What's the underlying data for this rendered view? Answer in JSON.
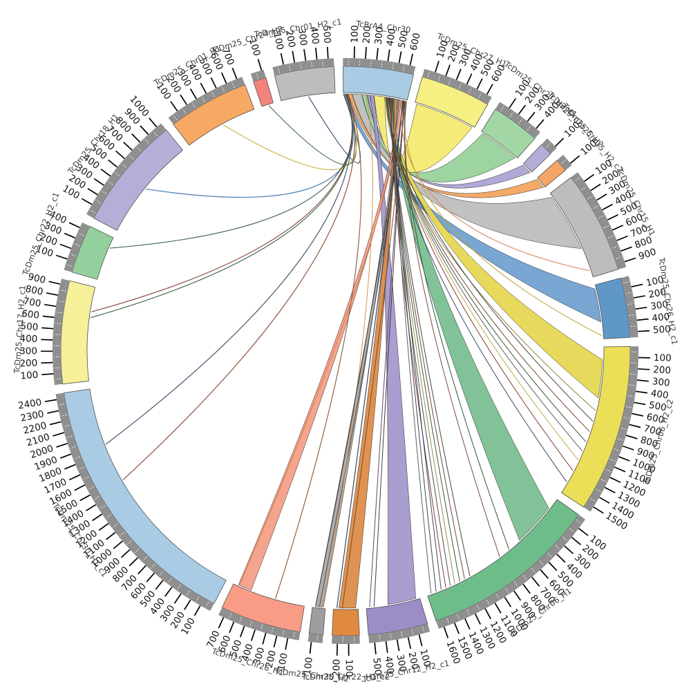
{
  "chart_data": {
    "type": "chord",
    "title": "",
    "tick_interval": 100,
    "band_color": "#8f8f8f",
    "tick_color": "#000000",
    "segments": [
      {
        "name": "TcBrA4_Chr30",
        "length": 650,
        "color": "#a9cbe4",
        "ticks": [
          100,
          200,
          300,
          400,
          500,
          600
        ]
      },
      {
        "name": "TcDm25_Chr27_H1",
        "length": 650,
        "color": "#f6ef82",
        "ticks": [
          100,
          200,
          300,
          400,
          500,
          600
        ]
      },
      {
        "name": "TcDm25_Chr27_H2_c1",
        "length": 450,
        "color": "#a2d6a4",
        "ticks": [
          100,
          200,
          300,
          400
        ]
      },
      {
        "name": "TcDm25_Chr25_H2",
        "length": 120,
        "color": "#b5add7",
        "ticks": [
          100
        ]
      },
      {
        "name": "TcDm25_Chr15_H2_c2",
        "length": 120,
        "color": "#f4a566",
        "ticks": [
          100
        ]
      },
      {
        "name": "TcDm25_Chr15_H1",
        "length": 950,
        "color": "#bdbdbd",
        "ticks": [
          100,
          200,
          300,
          400,
          500,
          600,
          700,
          800,
          900
        ]
      },
      {
        "name": "TcDm25_Chr26_H2_c1",
        "length": 550,
        "color": "#5f97c9",
        "ticks": [
          100,
          200,
          300,
          400,
          500
        ]
      },
      {
        "name": "TcDm25_Chr06_H2_c2",
        "length": 1550,
        "color": "#ecdf58",
        "ticks": [
          100,
          200,
          300,
          400,
          500,
          600,
          700,
          800,
          900,
          1000,
          1100,
          1200,
          1300,
          1400,
          1500
        ]
      },
      {
        "name": "TcDm25_Chr06_H1",
        "length": 1650,
        "color": "#6fbc8b",
        "ticks": [
          100,
          200,
          300,
          400,
          500,
          600,
          700,
          800,
          900,
          1000,
          1100,
          1200,
          1300,
          1400,
          1500,
          1600
        ]
      },
      {
        "name": "TcDm25_Chr12_H2_c1",
        "length": 550,
        "color": "#9c8dc7",
        "ticks": [
          100,
          200,
          300,
          400,
          500
        ]
      },
      {
        "name": "TcDm25_Chr22_H1_c2",
        "length": 250,
        "color": "#e08a3f",
        "ticks": [
          100,
          200
        ]
      },
      {
        "name": "TcDm25_Chr30_H2",
        "length": 130,
        "color": "#9e9e9e",
        "ticks": [
          100
        ]
      },
      {
        "name": "TcDm25_Chr26_H1",
        "length": 750,
        "color": "#f99c86",
        "ticks": [
          100,
          200,
          300,
          400,
          500,
          600,
          700
        ]
      },
      {
        "name": "TcDm25_Chr30_H1_c1",
        "length": 2450,
        "color": "#a9cbe4",
        "ticks": [
          100,
          200,
          300,
          400,
          500,
          600,
          700,
          800,
          900,
          1000,
          1100,
          1200,
          1300,
          1400,
          1500,
          1600,
          1700,
          1800,
          1900,
          2000,
          2100,
          2200,
          2300,
          2400
        ]
      },
      {
        "name": "TcDm25_Chr17_H2_c1",
        "length": 950,
        "color": "#f7f09b",
        "ticks": [
          100,
          200,
          300,
          400,
          500,
          600,
          700,
          800,
          900
        ]
      },
      {
        "name": "TcDm25_Chr22_H2_c1",
        "length": 450,
        "color": "#94d09e",
        "ticks": [
          100,
          200,
          300,
          400
        ]
      },
      {
        "name": "TcDm25_Chr18_H1",
        "length": 1050,
        "color": "#b7aed7",
        "ticks": [
          100,
          200,
          300,
          400,
          500,
          600,
          700,
          800,
          900,
          1000
        ]
      },
      {
        "name": "TcDm25_Chr01_H1",
        "length": 750,
        "color": "#f5a963",
        "ticks": [
          100,
          200,
          300,
          400,
          500,
          600,
          700
        ]
      },
      {
        "name": "TcDm25_Chr24_H2",
        "length": 120,
        "color": "#f4837d",
        "ticks": [
          100
        ]
      },
      {
        "name": "TcDm25_Chr01_H2_c1",
        "length": 550,
        "color": "#bdbdbd",
        "ticks": [
          100,
          200,
          300,
          400,
          500
        ]
      }
    ],
    "links": [
      {
        "kind": "ribbon",
        "s": [
          0,
          45
        ],
        "t_seg": 6,
        "t": [
          40,
          380
        ],
        "color": "#6f9fd0"
      },
      {
        "kind": "ribbon",
        "s": [
          50,
          85
        ],
        "t_seg": 4,
        "t": [
          8,
          112
        ],
        "color": "#f2a25c"
      },
      {
        "kind": "ribbon",
        "s": [
          90,
          185
        ],
        "t_seg": 5,
        "t": [
          40,
          640
        ],
        "color": "#bcbcbc"
      },
      {
        "kind": "ribbon",
        "s": [
          190,
          240
        ],
        "t_seg": 2,
        "t": [
          20,
          430
        ],
        "color": "#97d19b"
      },
      {
        "kind": "ribbon",
        "s": [
          245,
          268
        ],
        "t_seg": 3,
        "t": [
          8,
          112
        ],
        "color": "#aaa2d2"
      },
      {
        "kind": "ribbon",
        "s": [
          272,
          308
        ],
        "t_seg": 9,
        "t": [
          40,
          330
        ],
        "color": "#a496cc"
      },
      {
        "kind": "ribbon",
        "s": [
          312,
          420
        ],
        "t_seg": 1,
        "t": [
          20,
          630
        ],
        "color": "#f3ea6e"
      },
      {
        "kind": "ribbon",
        "s": [
          425,
          462
        ],
        "t_seg": 7,
        "t": [
          130,
          520
        ],
        "color": "#e5d64f"
      },
      {
        "kind": "ribbon",
        "s": [
          466,
          518
        ],
        "t_seg": 8,
        "t": [
          120,
          560
        ],
        "color": "#79bd90"
      },
      {
        "kind": "ribbon",
        "s": [
          522,
          548
        ],
        "t_seg": 10,
        "t": [
          25,
          195
        ],
        "color": "#dd8a44"
      },
      {
        "kind": "ribbon",
        "s": [
          552,
          566
        ],
        "t_seg": 11,
        "t": [
          20,
          100
        ],
        "color": "#a8a8a8"
      },
      {
        "kind": "ribbon",
        "s": [
          570,
          588
        ],
        "t_seg": 12,
        "t": [
          560,
          700
        ],
        "color": "#f49d85"
      },
      {
        "kind": "line",
        "s": 5,
        "t_seg": 19,
        "t": 280,
        "color": "#2f4c6e",
        "w": 1.2
      },
      {
        "kind": "line",
        "s": 10,
        "t_seg": 18,
        "t": 70,
        "color": "#3d6b44",
        "w": 1.2
      },
      {
        "kind": "line",
        "s": 15,
        "t_seg": 17,
        "t": 400,
        "color": "#c7b441",
        "w": 1.2
      },
      {
        "kind": "line",
        "s": 20,
        "t_seg": 16,
        "t": 510,
        "color": "#4d80b0",
        "w": 1.3
      },
      {
        "kind": "line",
        "s": 25,
        "t_seg": 15,
        "t": 340,
        "color": "#3a5a50",
        "w": 1.1
      },
      {
        "kind": "line",
        "s": 30,
        "t_seg": 14,
        "t": 640,
        "color": "#35624a",
        "w": 1.2
      },
      {
        "kind": "line",
        "s": 33,
        "t_seg": 14,
        "t": 700,
        "color": "#7c3a2c",
        "w": 1.1
      },
      {
        "kind": "line",
        "s": 38,
        "t_seg": 13,
        "t": 1870,
        "color": "#45546e",
        "w": 1.3
      },
      {
        "kind": "line",
        "s": 42,
        "t_seg": 13,
        "t": 1470,
        "color": "#8a4434",
        "w": 1.2
      },
      {
        "kind": "line",
        "s": 46,
        "t_seg": 12,
        "t": 300,
        "color": "#8a5a3a",
        "w": 1.2
      },
      {
        "kind": "line",
        "s": 600,
        "t_seg": 12,
        "t": 690,
        "color": "#d77d52",
        "w": 1.2
      },
      {
        "kind": "line",
        "s": 605,
        "t_seg": 11,
        "t": 60,
        "color": "#555555",
        "w": 1.2
      },
      {
        "kind": "line",
        "s": 230,
        "t_seg": 11,
        "t": 30,
        "color": "#d08a4a",
        "w": 1.0
      },
      {
        "kind": "line",
        "s": 610,
        "t_seg": 11,
        "t": 100,
        "color": "#333333",
        "w": 1.0
      },
      {
        "kind": "line",
        "s": 615,
        "t_seg": 10,
        "t": 215,
        "color": "#2f3c55",
        "w": 1.2
      },
      {
        "kind": "line",
        "s": 620,
        "t_seg": 10,
        "t": 160,
        "color": "#6b4a2a",
        "w": 1.0
      },
      {
        "kind": "line",
        "s": 625,
        "t_seg": 9,
        "t": 470,
        "color": "#333333",
        "w": 1.0
      },
      {
        "kind": "line",
        "s": 630,
        "t_seg": 9,
        "t": 515,
        "color": "#5a3a63",
        "w": 1.0
      },
      {
        "kind": "line",
        "s": 595,
        "t_seg": 5,
        "t": 880,
        "color": "#d98a6a",
        "w": 1.2
      },
      {
        "kind": "line",
        "s": 635,
        "t_seg": 6,
        "t": 520,
        "color": "#b8a33a",
        "w": 1.1
      },
      {
        "kind": "line",
        "s": 430,
        "t_seg": 7,
        "t": 650,
        "color": "#8a7a2a",
        "w": 1.0
      },
      {
        "kind": "line",
        "s": 434,
        "t_seg": 7,
        "t": 760,
        "color": "#3a3a3a",
        "w": 1.0
      },
      {
        "kind": "line",
        "s": 438,
        "t_seg": 7,
        "t": 870,
        "color": "#6b3a22",
        "w": 1.0
      },
      {
        "kind": "line",
        "s": 442,
        "t_seg": 7,
        "t": 980,
        "color": "#2e4d33",
        "w": 1.0
      },
      {
        "kind": "line",
        "s": 446,
        "t_seg": 7,
        "t": 1080,
        "color": "#555555",
        "w": 1.0
      },
      {
        "kind": "line",
        "s": 450,
        "t_seg": 7,
        "t": 1180,
        "color": "#b8a33a",
        "w": 1.0
      },
      {
        "kind": "line",
        "s": 454,
        "t_seg": 7,
        "t": 1300,
        "color": "#7a2f26",
        "w": 1.0
      },
      {
        "kind": "line",
        "s": 458,
        "t_seg": 7,
        "t": 1430,
        "color": "#2c3e60",
        "w": 1.0
      },
      {
        "kind": "line",
        "s": 468,
        "t_seg": 8,
        "t": 1180,
        "color": "#3a3a3a",
        "w": 1.0
      },
      {
        "kind": "line",
        "s": 473,
        "t_seg": 8,
        "t": 1240,
        "color": "#6b3a22",
        "w": 1.0
      },
      {
        "kind": "line",
        "s": 478,
        "t_seg": 8,
        "t": 1295,
        "color": "#2e4d33",
        "w": 1.0
      },
      {
        "kind": "line",
        "s": 483,
        "t_seg": 8,
        "t": 1350,
        "color": "#8a8a3a",
        "w": 1.0
      },
      {
        "kind": "line",
        "s": 488,
        "t_seg": 8,
        "t": 1400,
        "color": "#444444",
        "w": 1.0
      },
      {
        "kind": "line",
        "s": 493,
        "t_seg": 8,
        "t": 1450,
        "color": "#7a2f26",
        "w": 1.0
      },
      {
        "kind": "line",
        "s": 498,
        "t_seg": 8,
        "t": 1500,
        "color": "#2c3e60",
        "w": 1.0
      },
      {
        "kind": "line",
        "s": 503,
        "t_seg": 8,
        "t": 1555,
        "color": "#3a3a3a",
        "w": 1.0
      },
      {
        "kind": "line",
        "s": 508,
        "t_seg": 8,
        "t": 1610,
        "color": "#555555",
        "w": 1.0
      },
      {
        "kind": "line",
        "s": 640,
        "t_seg": 8,
        "t": 700,
        "color": "#355a40",
        "w": 1.1
      },
      {
        "kind": "line",
        "s": 645,
        "t_seg": 8,
        "t": 820,
        "color": "#704030",
        "w": 1.0
      }
    ]
  }
}
